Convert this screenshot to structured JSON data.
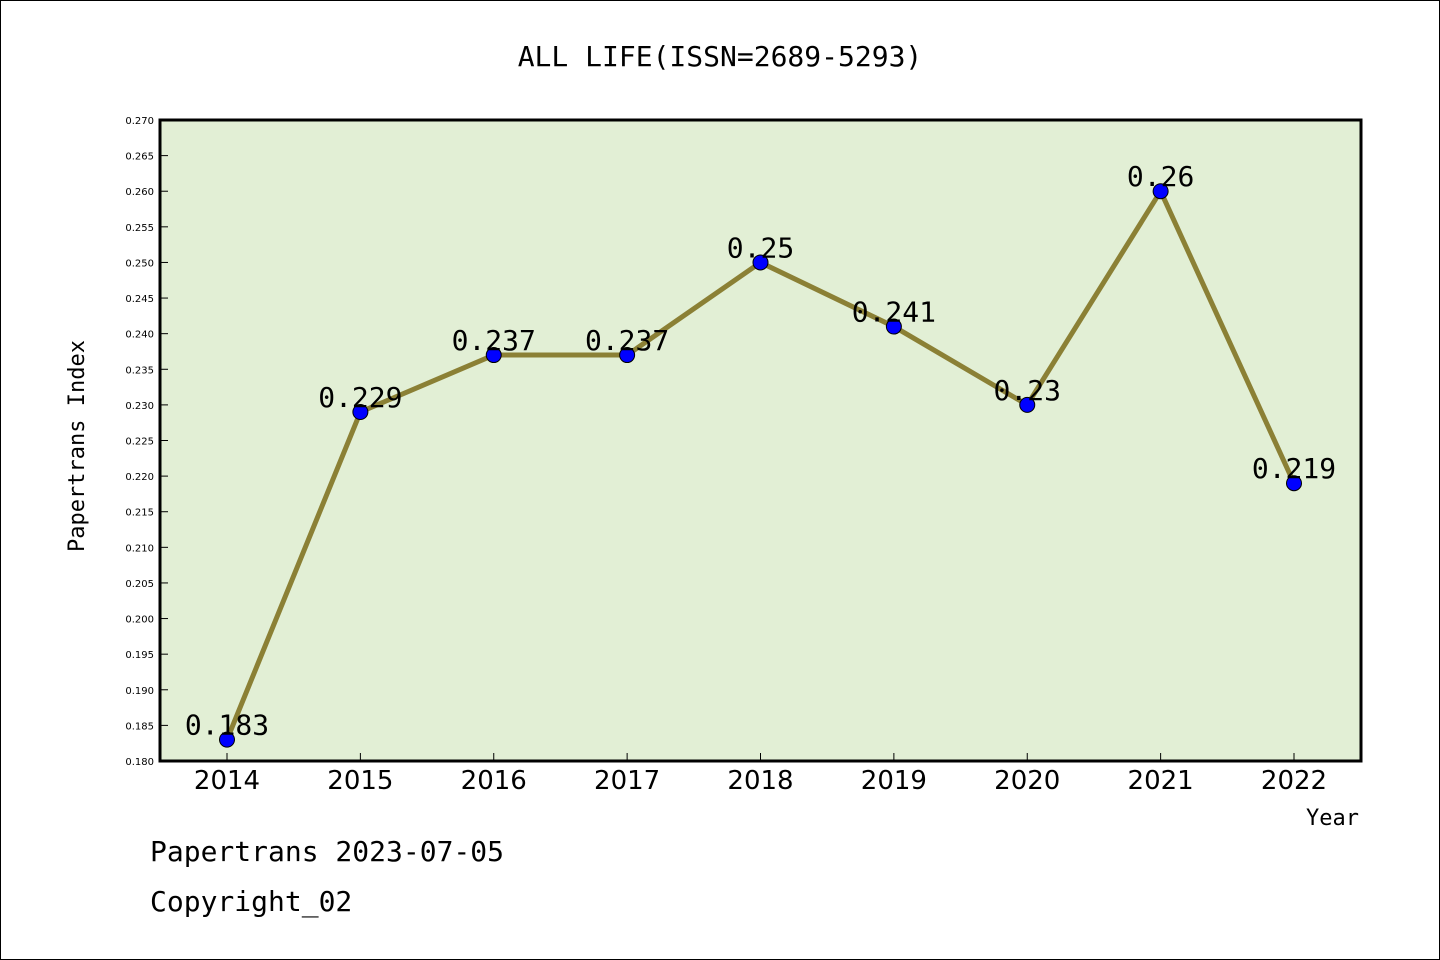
{
  "chart_data": {
    "type": "line",
    "title": "ALL LIFE(ISSN=2689-5293)",
    "xlabel": "Year",
    "ylabel": "Papertrans Index",
    "categories": [
      "2014",
      "2015",
      "2016",
      "2017",
      "2018",
      "2019",
      "2020",
      "2021",
      "2022"
    ],
    "values": [
      0.183,
      0.229,
      0.237,
      0.237,
      0.25,
      0.241,
      0.23,
      0.26,
      0.219
    ],
    "data_labels": [
      "0.183",
      "0.229",
      "0.237",
      "0.237",
      "0.25",
      "0.241",
      "0.23",
      "0.26",
      "0.219"
    ],
    "ylim": [
      0.18,
      0.27
    ],
    "yticks": [
      "0.180",
      "0.185",
      "0.190",
      "0.195",
      "0.200",
      "0.205",
      "0.210",
      "0.215",
      "0.220",
      "0.225",
      "0.230",
      "0.235",
      "0.240",
      "0.245",
      "0.250",
      "0.255",
      "0.260",
      "0.265",
      "0.270"
    ],
    "grid": false,
    "legend": "none",
    "colors": {
      "plot_background": "#e2efd5",
      "line": "#8b8035",
      "marker": "#0000ff"
    }
  },
  "footer": {
    "date_text": "Papertrans 2023-07-05",
    "copyright_text": "Copyright_02"
  }
}
